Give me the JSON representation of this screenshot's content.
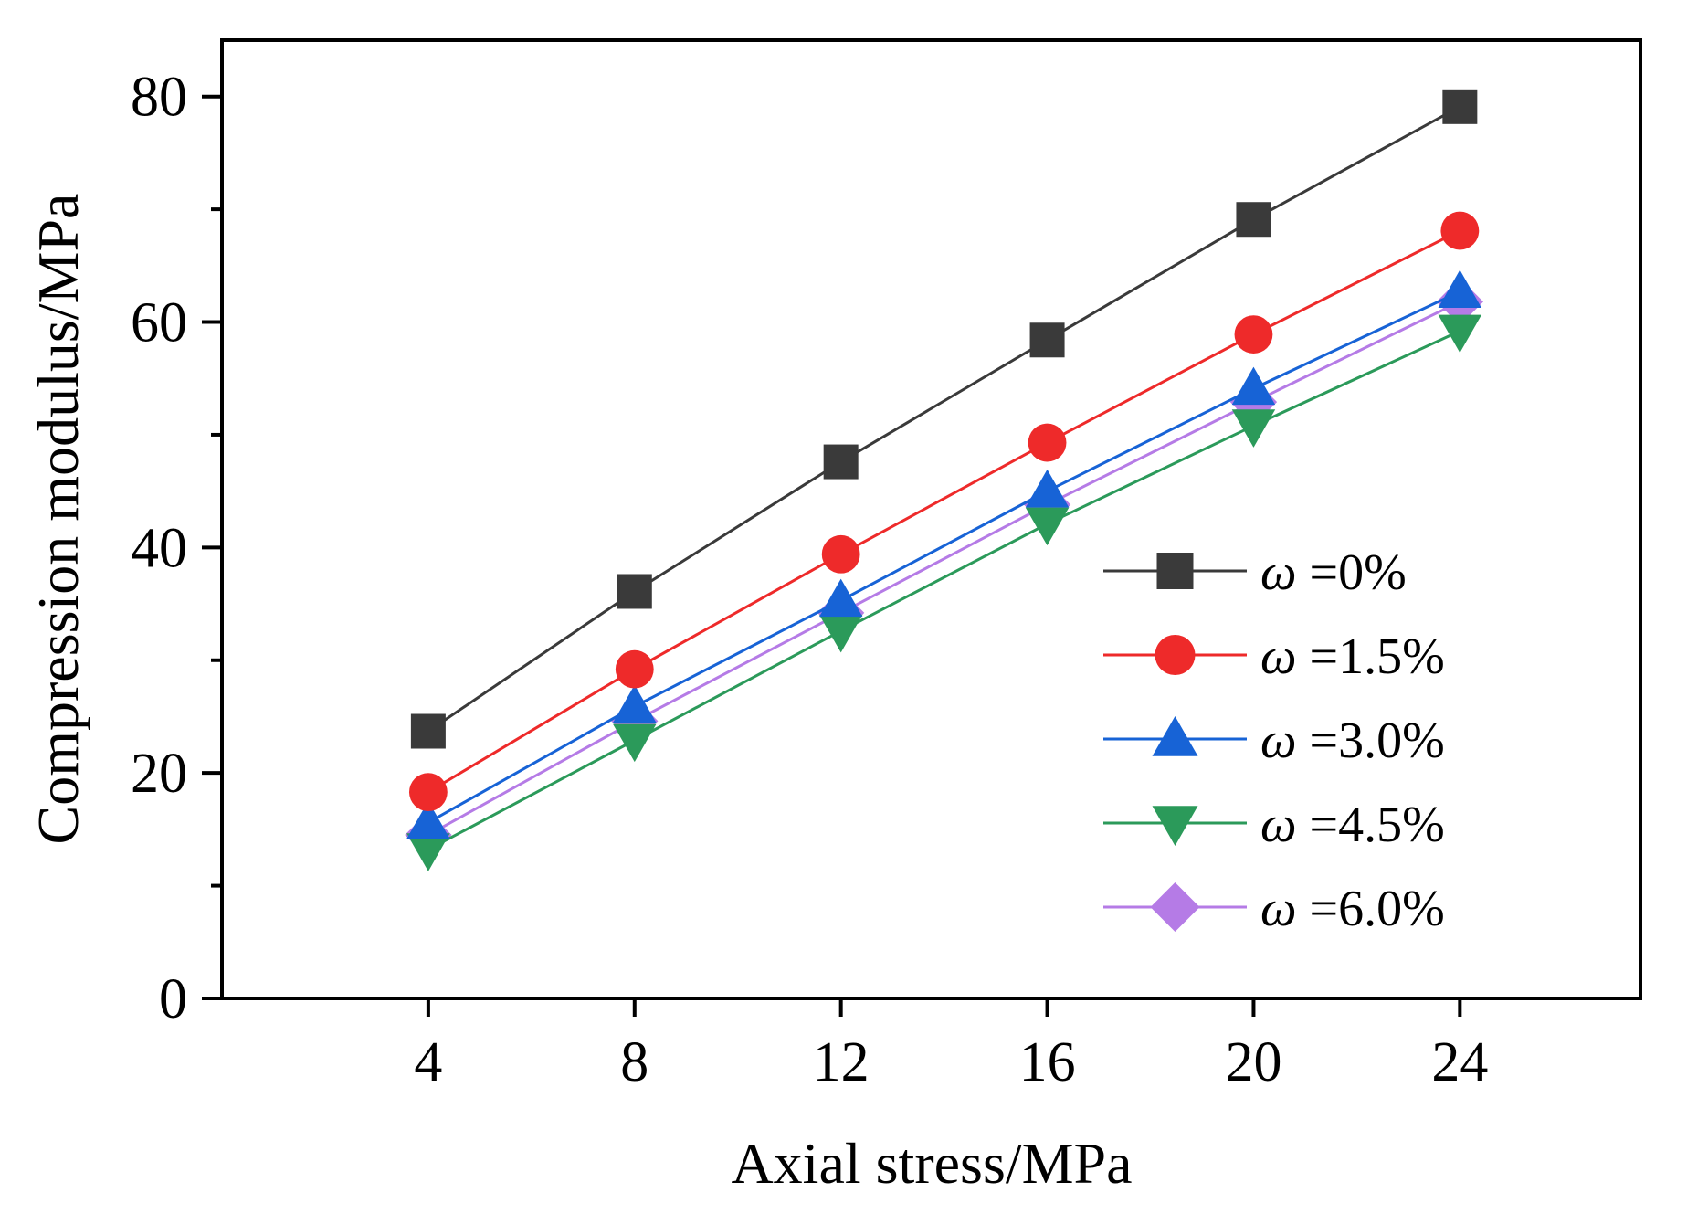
{
  "chart_data": {
    "type": "line",
    "title": "",
    "xlabel": "Axial stress/MPa",
    "ylabel": "Compression modulus/MPa",
    "x": [
      4,
      8,
      12,
      16,
      20,
      24
    ],
    "x_tick_labels": [
      "4",
      "8",
      "12",
      "16",
      "20",
      "24"
    ],
    "xlim": [
      0,
      27.5
    ],
    "ylim": [
      0,
      85
    ],
    "y_ticks": [
      0,
      20,
      40,
      60,
      80
    ],
    "y_tick_labels": [
      "0",
      "20",
      "40",
      "60",
      "80"
    ],
    "y_minor_ticks": [
      10,
      30,
      50,
      70
    ],
    "grid": false,
    "legend_position": "right",
    "series": [
      {
        "name": "ω =0%",
        "symbol": "ω",
        "value_label": " =0%",
        "color": "#3a3a3a",
        "marker": "square",
        "values": [
          23.7,
          36.1,
          47.6,
          58.4,
          69.1,
          79.1
        ]
      },
      {
        "name": "ω =1.5%",
        "symbol": "ω",
        "value_label": " =1.5%",
        "color": "#ee2a2a",
        "marker": "circle",
        "values": [
          18.3,
          29.2,
          39.4,
          49.3,
          58.9,
          68.1
        ]
      },
      {
        "name": "ω =3.0%",
        "symbol": "ω",
        "value_label": " =3.0%",
        "color": "#1763d6",
        "marker": "triangle-up",
        "values": [
          15.6,
          25.9,
          35.3,
          45.0,
          54.1,
          62.7
        ]
      },
      {
        "name": "ω =4.5%",
        "symbol": "ω",
        "value_label": " =4.5%",
        "color": "#2b9a5a",
        "marker": "triangle-down",
        "values": [
          13.2,
          22.9,
          32.6,
          42.1,
          50.8,
          59.2
        ]
      },
      {
        "name": "ω =6.0%",
        "symbol": "ω",
        "value_label": " =6.0%",
        "color": "#b57be6",
        "marker": "diamond",
        "values": [
          14.5,
          24.6,
          34.2,
          43.8,
          52.9,
          61.8
        ]
      }
    ]
  }
}
